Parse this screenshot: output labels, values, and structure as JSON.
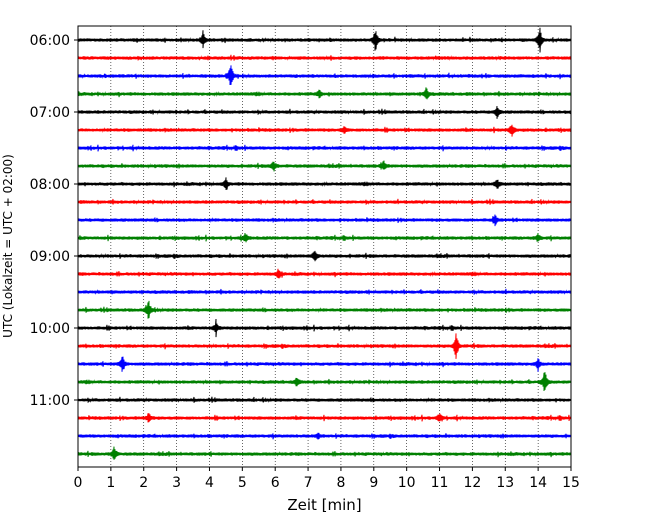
{
  "chart_data": {
    "type": "line",
    "title": "",
    "xlabel": "Zeit  [min]",
    "ylabel": "UTC (Lokalzeit = UTC + 02:00)",
    "xlim": [
      0,
      15
    ],
    "x_ticks": [
      0,
      1,
      2,
      3,
      4,
      5,
      6,
      7,
      8,
      9,
      10,
      11,
      12,
      13,
      14,
      15
    ],
    "x_tick_labels": [
      "0",
      "1",
      "2",
      "3",
      "4",
      "5",
      "6",
      "7",
      "8",
      "9",
      "10",
      "11",
      "12",
      "13",
      "14",
      "15"
    ],
    "y_tick_labels": [
      "06:00",
      "07:00",
      "08:00",
      "09:00",
      "10:00",
      "11:00"
    ],
    "grid": "vertical dotted lines at each minute",
    "line_colors": [
      "#000000",
      "#ff0000",
      "#0000ff",
      "#008000"
    ],
    "traces": [
      {
        "start": "06:00",
        "color": "#000000",
        "events": [
          [
            3.8,
            1.0
          ],
          [
            9.05,
            1.4
          ],
          [
            14.05,
            1.5
          ]
        ]
      },
      {
        "start": "06:15",
        "color": "#ff0000",
        "events": []
      },
      {
        "start": "06:30",
        "color": "#0000ff",
        "events": [
          [
            4.65,
            1.6
          ]
        ]
      },
      {
        "start": "06:45",
        "color": "#008000",
        "events": [
          [
            7.35,
            0.5
          ],
          [
            10.6,
            0.8
          ]
        ]
      },
      {
        "start": "07:00",
        "color": "#000000",
        "events": [
          [
            12.75,
            0.7
          ]
        ]
      },
      {
        "start": "07:15",
        "color": "#ff0000",
        "events": [
          [
            8.1,
            0.4
          ],
          [
            13.2,
            0.8
          ]
        ]
      },
      {
        "start": "07:30",
        "color": "#0000ff",
        "events": []
      },
      {
        "start": "07:45",
        "color": "#008000",
        "events": [
          [
            5.95,
            0.7
          ],
          [
            9.3,
            0.6
          ]
        ]
      },
      {
        "start": "08:00",
        "color": "#000000",
        "events": [
          [
            4.5,
            0.6
          ],
          [
            12.75,
            0.5
          ]
        ]
      },
      {
        "start": "08:15",
        "color": "#ff0000",
        "events": []
      },
      {
        "start": "08:30",
        "color": "#0000ff",
        "events": [
          [
            12.7,
            0.5
          ]
        ]
      },
      {
        "start": "08:45",
        "color": "#008000",
        "events": [
          [
            5.1,
            0.6
          ],
          [
            14.0,
            0.5
          ]
        ]
      },
      {
        "start": "09:00",
        "color": "#000000",
        "events": [
          [
            7.2,
            0.8
          ]
        ]
      },
      {
        "start": "09:15",
        "color": "#ff0000",
        "events": [
          [
            6.1,
            0.6
          ]
        ]
      },
      {
        "start": "09:30",
        "color": "#0000ff",
        "events": []
      },
      {
        "start": "09:45",
        "color": "#008000",
        "events": [
          [
            2.15,
            1.3
          ]
        ]
      },
      {
        "start": "10:00",
        "color": "#000000",
        "events": [
          [
            4.2,
            0.7
          ]
        ]
      },
      {
        "start": "10:15",
        "color": "#ff0000",
        "events": [
          [
            11.5,
            1.7
          ]
        ]
      },
      {
        "start": "10:30",
        "color": "#0000ff",
        "events": [
          [
            1.35,
            1.1
          ],
          [
            14.0,
            0.8
          ]
        ]
      },
      {
        "start": "10:45",
        "color": "#008000",
        "events": [
          [
            6.65,
            0.5
          ],
          [
            14.2,
            1.5
          ]
        ]
      },
      {
        "start": "11:00",
        "color": "#000000",
        "events": []
      },
      {
        "start": "11:15",
        "color": "#ff0000",
        "events": [
          [
            2.15,
            0.6
          ],
          [
            11.0,
            0.6
          ]
        ]
      },
      {
        "start": "11:30",
        "color": "#0000ff",
        "events": [
          [
            7.3,
            0.4
          ]
        ]
      },
      {
        "start": "11:45",
        "color": "#008000",
        "events": [
          [
            1.1,
            0.9
          ]
        ]
      }
    ]
  }
}
